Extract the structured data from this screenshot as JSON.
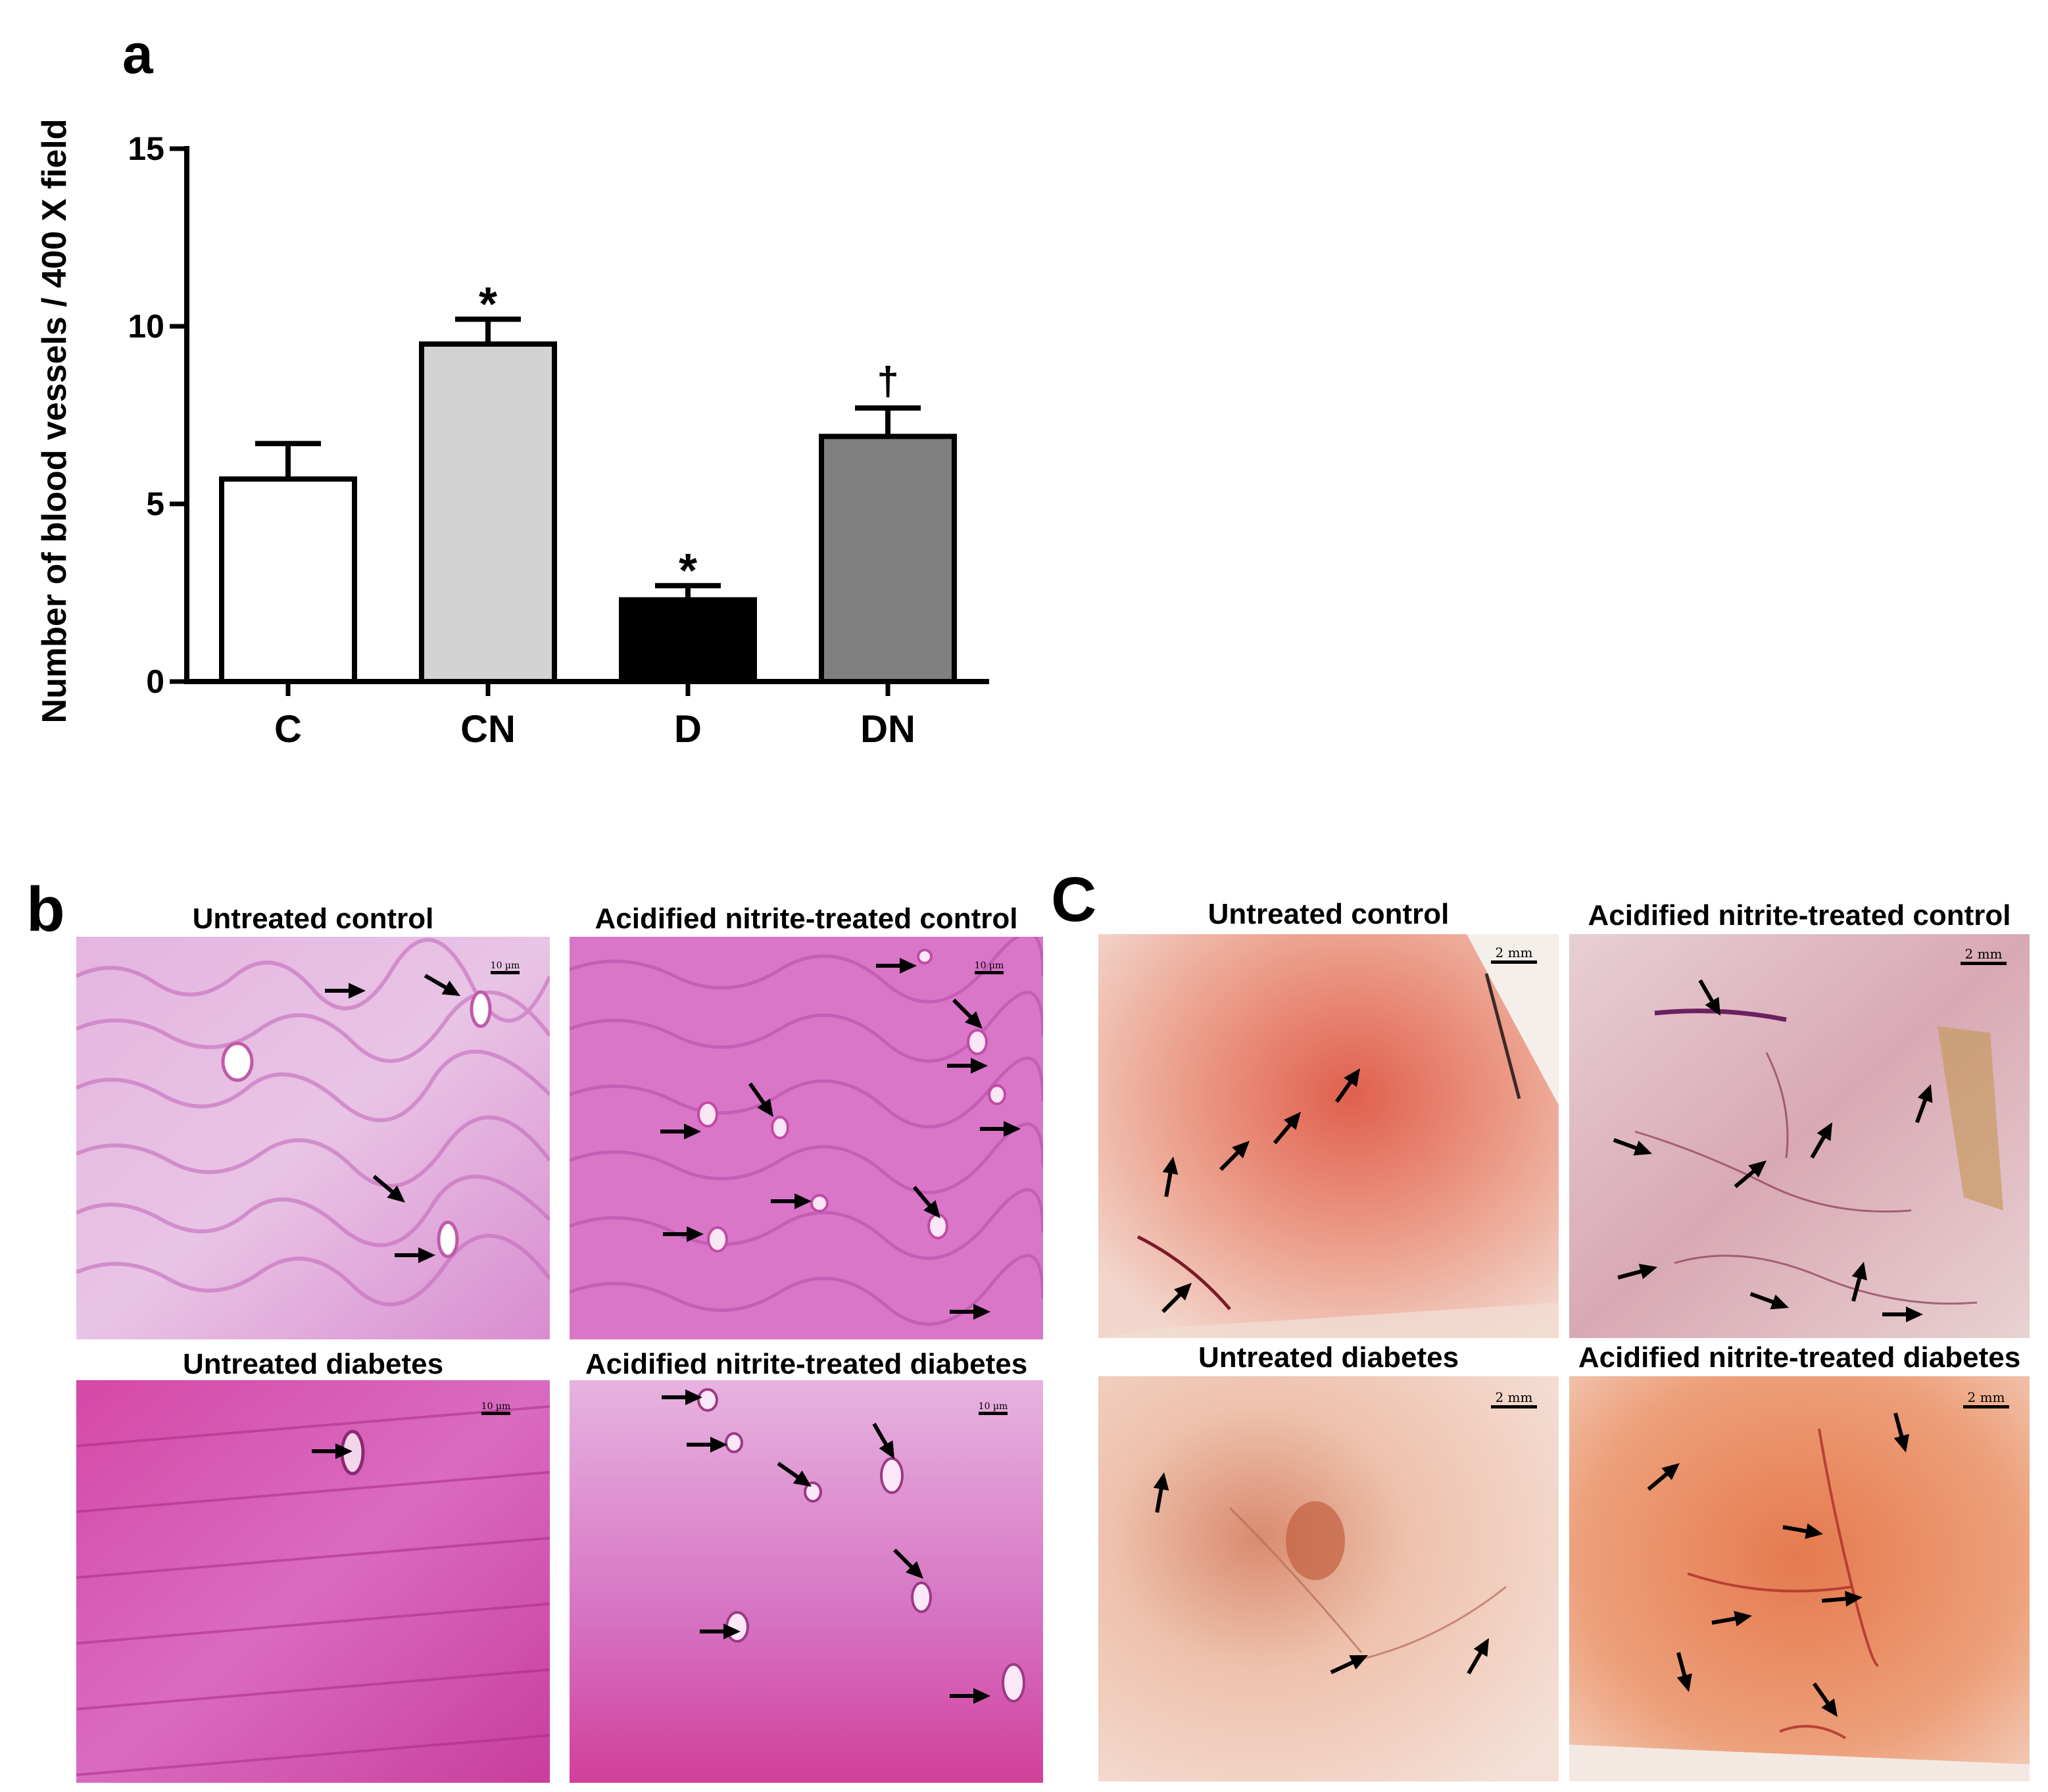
{
  "panel_a": {
    "letter": "a",
    "chart_data": {
      "type": "bar",
      "title": "",
      "xlabel": "",
      "ylabel": "Number of blood vessels / 400 X field",
      "ylim": [
        0,
        15
      ],
      "yticks": [
        0,
        5,
        10,
        15
      ],
      "categories": [
        "C",
        "CN",
        "D",
        "DN"
      ],
      "values": [
        5.7,
        9.5,
        2.3,
        6.9
      ],
      "errors": [
        1.0,
        0.7,
        0.4,
        0.8
      ],
      "significance": [
        "",
        "*",
        "*",
        "†"
      ],
      "bar_colors": [
        "#ffffff",
        "#d3d3d3",
        "#000000",
        "#808080"
      ],
      "grid": false,
      "legend": "none"
    }
  },
  "panel_b": {
    "letter": "b",
    "images": [
      {
        "title": "Untreated control",
        "scale_label": "10 µm"
      },
      {
        "title": "Acidified nitrite-treated control",
        "scale_label": "10 µm"
      },
      {
        "title": "Untreated diabetes",
        "scale_label": "10 µm"
      },
      {
        "title": "Acidified nitrite-treated diabetes",
        "scale_label": "10 µm"
      }
    ]
  },
  "panel_c": {
    "letter": "C",
    "images": [
      {
        "title": "Untreated control",
        "scale_label": "2 mm"
      },
      {
        "title": "Acidified nitrite-treated control",
        "scale_label": "2 mm"
      },
      {
        "title": "Untreated diabetes",
        "scale_label": "2 mm"
      },
      {
        "title": "Acidified nitrite-treated diabetes",
        "scale_label": "2 mm"
      }
    ]
  },
  "colors": {
    "he_stain": "#d86fc1",
    "he_dark": "#b8369b",
    "tissue_orange": "#e8946a",
    "tissue_pale": "#d9b0b0"
  }
}
